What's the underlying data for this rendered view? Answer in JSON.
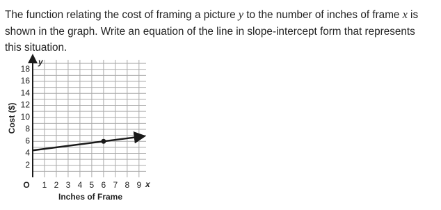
{
  "question": [
    "The function relating the cost of framing a picture ",
    "y",
    " to the number of inches of frame ",
    "x",
    " is shown in the graph. Write an equation of the line in slope-intercept form that represents this situation."
  ],
  "chart_data": {
    "type": "line",
    "x_axis_title": "Inches of Frame",
    "y_axis_title": "Cost ($)",
    "x_axis_label": "x",
    "y_axis_label": "y",
    "origin_label": "O",
    "xlim": [
      0,
      9.6
    ],
    "ylim": [
      0,
      19.6
    ],
    "xticks": [
      1,
      2,
      3,
      4,
      5,
      6,
      7,
      8,
      9
    ],
    "yticks": [
      2,
      4,
      6,
      8,
      10,
      12,
      14,
      16,
      18
    ],
    "minor_yticks": [
      1,
      3,
      5,
      7,
      9,
      11,
      13,
      15,
      17,
      19
    ],
    "grid": true,
    "series": [
      {
        "color": "#1a1a1a",
        "x": [
          0,
          9.4
        ],
        "values": [
          4.5,
          6.85
        ]
      }
    ],
    "points": [
      {
        "x": 6,
        "y": 6
      }
    ]
  }
}
